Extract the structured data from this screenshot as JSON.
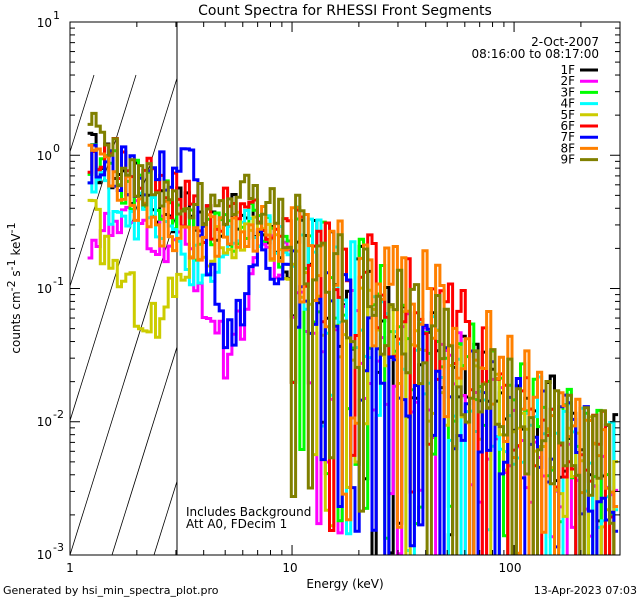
{
  "chart_data": {
    "type": "line",
    "title": "Count Spectra for RHESSI Front Segments",
    "xlabel": "Energy (keV)",
    "ylabel_main": "counts cm",
    "ylabel_sup1": "-2",
    "ylabel_mid": " s",
    "ylabel_sup2": "-1",
    "ylabel_end": " keV",
    "ylabel_sup3": "-1",
    "x_scale": "log",
    "y_scale": "log",
    "xlim": [
      1,
      300
    ],
    "ylim": [
      0.001,
      10
    ],
    "x_ticks": [
      {
        "value": 1,
        "label": "1"
      },
      {
        "value": 10,
        "label": "10"
      },
      {
        "value": 100,
        "label": "100"
      }
    ],
    "y_ticks": [
      {
        "value": 0.001,
        "base": "10",
        "exp": "-3"
      },
      {
        "value": 0.01,
        "base": "10",
        "exp": "-2"
      },
      {
        "value": 0.1,
        "base": "10",
        "exp": "-1"
      },
      {
        "value": 1,
        "base": "10",
        "exp": "0"
      },
      {
        "value": 10,
        "base": "10",
        "exp": "1"
      }
    ],
    "shaded_region_xmax": 3,
    "date": "2-Oct-2007",
    "time_range": "08:16:00 to 08:17:00",
    "annotation_line1": "Includes Background",
    "annotation_line2": "Att A0, FDecim 1",
    "series": [
      {
        "name": "1F",
        "color": "#000000",
        "anchors": [
          [
            1.2,
            1.05
          ],
          [
            2.5,
            0.45
          ],
          [
            4,
            0.35
          ],
          [
            7,
            0.3
          ],
          [
            10,
            0.15
          ],
          [
            20,
            0.08
          ],
          [
            50,
            0.025
          ],
          [
            100,
            0.012
          ],
          [
            300,
            0.004
          ]
        ]
      },
      {
        "name": "2F",
        "color": "#ff00ff",
        "anchors": [
          [
            1.2,
            0.24
          ],
          [
            2,
            0.3
          ],
          [
            3.5,
            0.18
          ],
          [
            5,
            0.03
          ],
          [
            8,
            0.22
          ],
          [
            15,
            0.04
          ],
          [
            30,
            0.025
          ],
          [
            60,
            0.018
          ],
          [
            120,
            0.006
          ],
          [
            300,
            0.002
          ]
        ]
      },
      {
        "name": "3F",
        "color": "#00ff00",
        "anchors": [
          [
            1.2,
            0.85
          ],
          [
            2.5,
            0.5
          ],
          [
            4,
            0.22
          ],
          [
            7,
            0.35
          ],
          [
            10,
            0.18
          ],
          [
            20,
            0.09
          ],
          [
            50,
            0.03
          ],
          [
            100,
            0.013
          ],
          [
            300,
            0.004
          ]
        ]
      },
      {
        "name": "4F",
        "color": "#00ffff",
        "anchors": [
          [
            1.2,
            0.6
          ],
          [
            2.5,
            0.3
          ],
          [
            4,
            0.12
          ],
          [
            7,
            0.3
          ],
          [
            10,
            0.18
          ],
          [
            20,
            0.09
          ],
          [
            50,
            0.02
          ],
          [
            100,
            0.01
          ],
          [
            300,
            0.0035
          ]
        ]
      },
      {
        "name": "5F",
        "color": "#cccc00",
        "anchors": [
          [
            1.2,
            0.38
          ],
          [
            1.8,
            0.1
          ],
          [
            2.5,
            0.05
          ],
          [
            3.5,
            0.2
          ],
          [
            6,
            0.25
          ],
          [
            10,
            0.15
          ],
          [
            20,
            0.05
          ],
          [
            50,
            0.02
          ],
          [
            100,
            0.008
          ],
          [
            300,
            0.003
          ]
        ]
      },
      {
        "name": "6F",
        "color": "#ff0000",
        "anchors": [
          [
            1.2,
            1.2
          ],
          [
            2.5,
            0.6
          ],
          [
            4,
            0.35
          ],
          [
            7,
            0.4
          ],
          [
            10,
            0.2
          ],
          [
            20,
            0.1
          ],
          [
            50,
            0.05
          ],
          [
            100,
            0.012
          ],
          [
            300,
            0.005
          ]
        ]
      },
      {
        "name": "7F",
        "color": "#0000ff",
        "anchors": [
          [
            1.2,
            0.8
          ],
          [
            2.5,
            0.7
          ],
          [
            3.5,
            0.9
          ],
          [
            5,
            0.03
          ],
          [
            7,
            0.2
          ],
          [
            10,
            0.12
          ],
          [
            20,
            0.04
          ],
          [
            50,
            0.015
          ],
          [
            100,
            0.01
          ],
          [
            300,
            0.004
          ]
        ]
      },
      {
        "name": "8F",
        "color": "#ff8000",
        "anchors": [
          [
            1.2,
            1.3
          ],
          [
            2.5,
            0.3
          ],
          [
            4,
            0.25
          ],
          [
            7,
            0.3
          ],
          [
            10,
            0.2
          ],
          [
            20,
            0.1
          ],
          [
            50,
            0.08
          ],
          [
            100,
            0.015
          ],
          [
            300,
            0.005
          ]
        ]
      },
      {
        "name": "9F",
        "color": "#808000",
        "anchors": [
          [
            1.2,
            1.5
          ],
          [
            2.5,
            0.5
          ],
          [
            4,
            0.4
          ],
          [
            7,
            0.5
          ],
          [
            10,
            0.25
          ],
          [
            20,
            0.1
          ],
          [
            50,
            0.03
          ],
          [
            100,
            0.012
          ],
          [
            300,
            0.004
          ]
        ]
      }
    ]
  },
  "footer": {
    "generator": "Generated by hsi_min_spectra_plot.pro",
    "timestamp": "13-Apr-2023 07:03"
  }
}
